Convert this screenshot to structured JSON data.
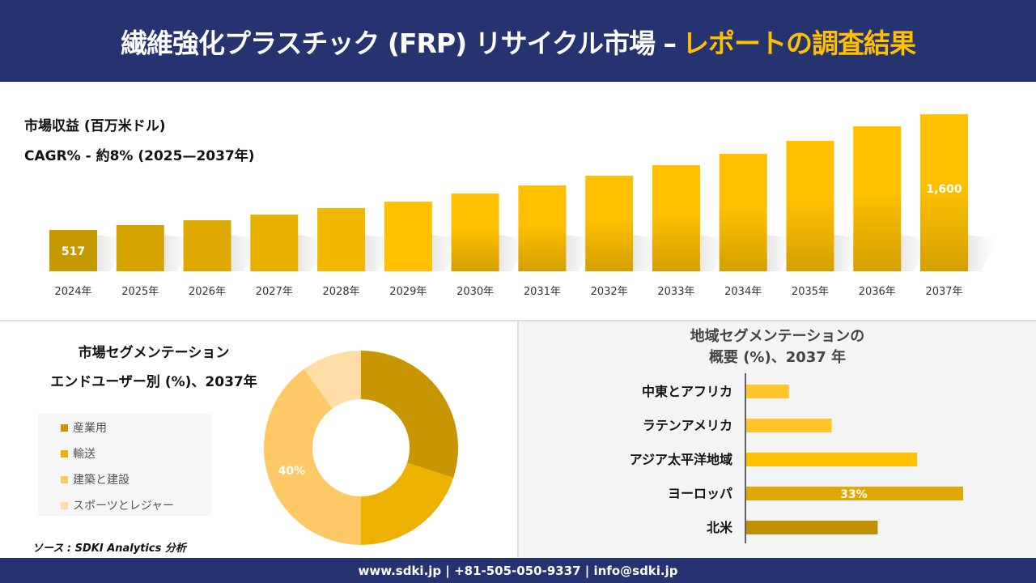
{
  "header": {
    "title": "繊維強化プラスチック (FRP) リサイクル市場 –",
    "title_accent": "レポートの調査結果"
  },
  "revenue": {
    "label": "市場収益 (百万米ドル)",
    "cagr": "CAGR% - 約8% (2025—2037年)"
  },
  "end_user": {
    "title_line1": "市場セグメンテーション",
    "title_line2": "エンドユーザー別 (%)、2037年"
  },
  "region": {
    "title_line1": "地域セグメンテーションの",
    "title_line2": "概要 (%)、2037 年"
  },
  "source": "ソース : SDKI Analytics 分析",
  "footer": "www.sdki.jp | +81-505-050-9337 | info@sdki.jp",
  "chart_data": [
    {
      "type": "bar",
      "title": "市場収益 (百万米ドル)",
      "categories": [
        "2024年",
        "2025年",
        "2026年",
        "2027年",
        "2028年",
        "2029年",
        "2030年",
        "2031年",
        "2032年",
        "2033年",
        "2034年",
        "2035年",
        "2036年",
        "2037年"
      ],
      "values": [
        517,
        563,
        608,
        661,
        722,
        782,
        858,
        934,
        1025,
        1123,
        1230,
        1351,
        1487,
        1600
      ],
      "data_labels": {
        "0": "517",
        "13": "1,600"
      },
      "colors": [
        "#C49A00",
        "#D4A300",
        "#DEA900",
        "#E8B000",
        "#F2B800",
        "#FFC000",
        "#FFC000",
        "#FFC000",
        "#FFC000",
        "#FFC000",
        "#FFC000",
        "#FFC000",
        "#FFC000",
        "#FFC000"
      ]
    },
    {
      "type": "pie",
      "subtype": "donut",
      "title": "市場セグメンテーション エンドユーザー別 (%)、2037年",
      "labels": [
        "産業用",
        "輸送",
        "建築と建設",
        "スポーツとレジャー"
      ],
      "values": [
        30,
        20,
        40,
        10
      ],
      "data_labels": {
        "2": "40%"
      },
      "colors": [
        "#C79600",
        "#EDB200",
        "#FDC966",
        "#FFDDA6"
      ],
      "legend": "left"
    },
    {
      "type": "bar",
      "orientation": "horizontal",
      "title": "地域セグメンテーションの 概要 (%)、2037 年",
      "categories": [
        "中東とアフリカ",
        "ラテンアメリカ",
        "アジア太平洋地域",
        "ヨーロッパ",
        "北米"
      ],
      "values": [
        6.5,
        13,
        26,
        33,
        20
      ],
      "data_labels": {
        "3": "33%"
      },
      "colors": [
        "#FFC72C",
        "#FFC72C",
        "#FFC000",
        "#E0A800",
        "#C09000"
      ]
    }
  ]
}
